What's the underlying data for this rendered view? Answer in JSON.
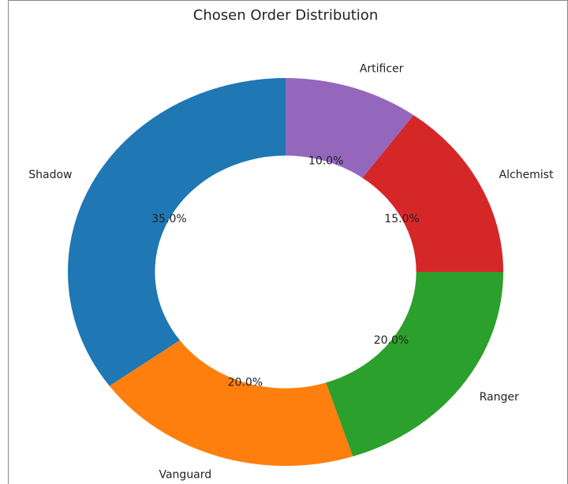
{
  "chart_data": {
    "type": "pie",
    "title": "Chosen Order Distribution",
    "categories": [
      "Shadow",
      "Vanguard",
      "Ranger",
      "Alchemist",
      "Artificer"
    ],
    "values": [
      35,
      20,
      20,
      15,
      10
    ],
    "value_labels": [
      "35.0%",
      "20.0%",
      "20.0%",
      "15.0%",
      "10.0%"
    ],
    "colors": [
      "#1f77b4",
      "#ff7f0e",
      "#2ca02c",
      "#d62728",
      "#9467bd"
    ]
  }
}
